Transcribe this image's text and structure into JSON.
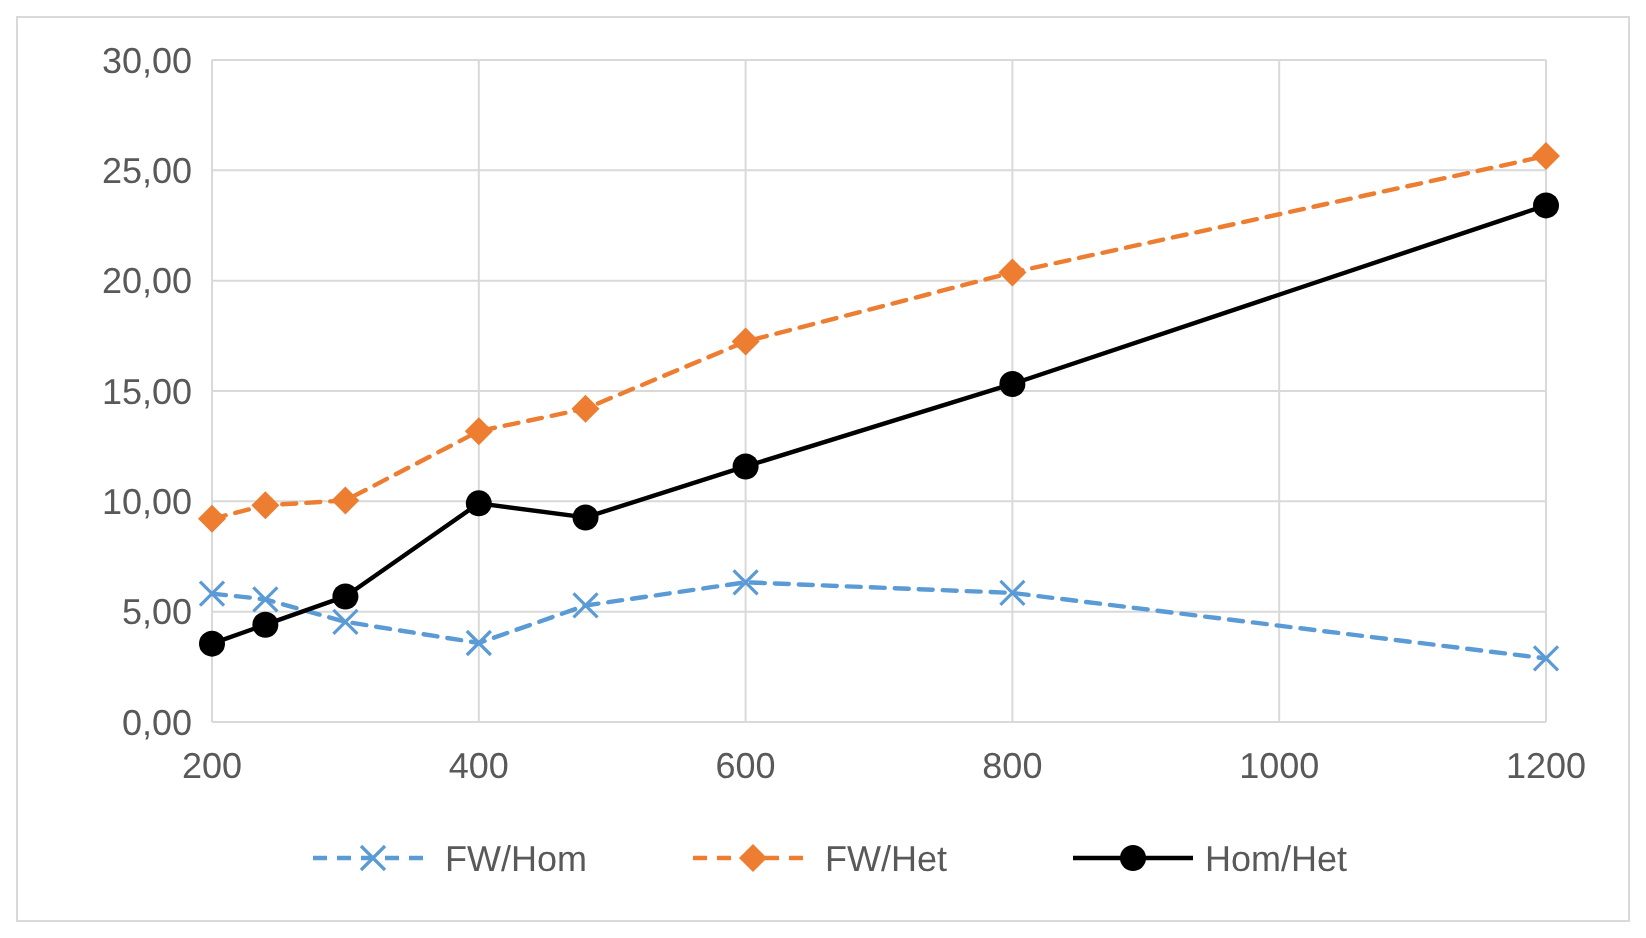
{
  "chart_data": {
    "type": "line",
    "x": [
      200,
      240,
      300,
      400,
      480,
      600,
      800,
      1200
    ],
    "series": [
      {
        "name": "FW/Hom",
        "color": "#5b9bd5",
        "marker": "cross",
        "line_style": "dashed",
        "values": [
          5.82,
          5.56,
          4.54,
          3.58,
          5.28,
          6.33,
          5.85,
          2.88
        ]
      },
      {
        "name": "FW/Het",
        "color": "#ed7d31",
        "marker": "diamond",
        "line_style": "dashed",
        "values": [
          9.21,
          9.82,
          10.04,
          13.18,
          14.2,
          17.24,
          20.37,
          25.65
        ]
      },
      {
        "name": "Hom/Het",
        "color": "#000000",
        "marker": "circle",
        "line_style": "solid",
        "values": [
          3.55,
          4.41,
          5.69,
          9.91,
          9.27,
          11.58,
          15.32,
          23.41
        ]
      }
    ],
    "xlim": [
      200,
      1200
    ],
    "xticks": [
      200,
      400,
      600,
      800,
      1000,
      1200
    ],
    "ylim": [
      0,
      30
    ],
    "yticks": [
      {
        "value": 0,
        "label": "0,00"
      },
      {
        "value": 5,
        "label": "5,00"
      },
      {
        "value": 10,
        "label": "10,00"
      },
      {
        "value": 15,
        "label": "15,00"
      },
      {
        "value": 20,
        "label": "20,00"
      },
      {
        "value": 25,
        "label": "25,00"
      },
      {
        "value": 30,
        "label": "30,00"
      }
    ],
    "grid": true,
    "legend": "bottom"
  }
}
